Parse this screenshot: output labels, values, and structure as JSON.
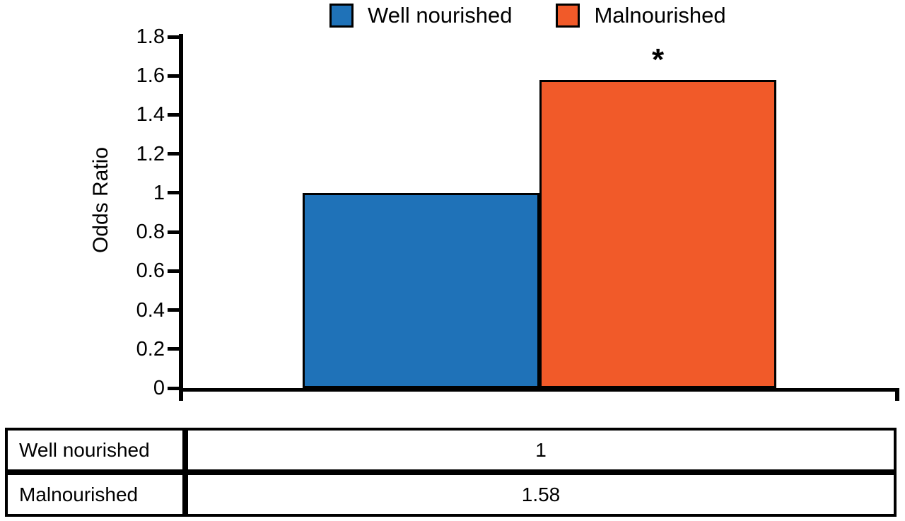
{
  "chart_data": {
    "type": "bar",
    "title": "",
    "xlabel": "",
    "ylabel": "Odds Ratio",
    "categories": [
      "Well nourished",
      "Malnourished"
    ],
    "values": [
      1,
      1.58
    ],
    "bar_colors": [
      "#1F72B8",
      "#F15A29"
    ],
    "ylim": [
      0,
      1.8
    ],
    "yticks": [
      0,
      0.2,
      0.4,
      0.6,
      0.8,
      1,
      1.2,
      1.4,
      1.6,
      1.8
    ],
    "ytick_labels": [
      "0",
      "0.2",
      "0.4",
      "0.6",
      "0.8",
      "1",
      "1.2",
      "1.4",
      "1.6",
      "1.8"
    ],
    "grid": false,
    "legend_position": "top",
    "legend": [
      "Well nourished",
      "Malnourished"
    ],
    "annotations": [
      {
        "text": "*",
        "category": "Malnourished"
      }
    ]
  },
  "table": {
    "rows": [
      {
        "label": "Well nourished",
        "value": "1"
      },
      {
        "label": "Malnourished",
        "value": "1.58"
      }
    ]
  }
}
